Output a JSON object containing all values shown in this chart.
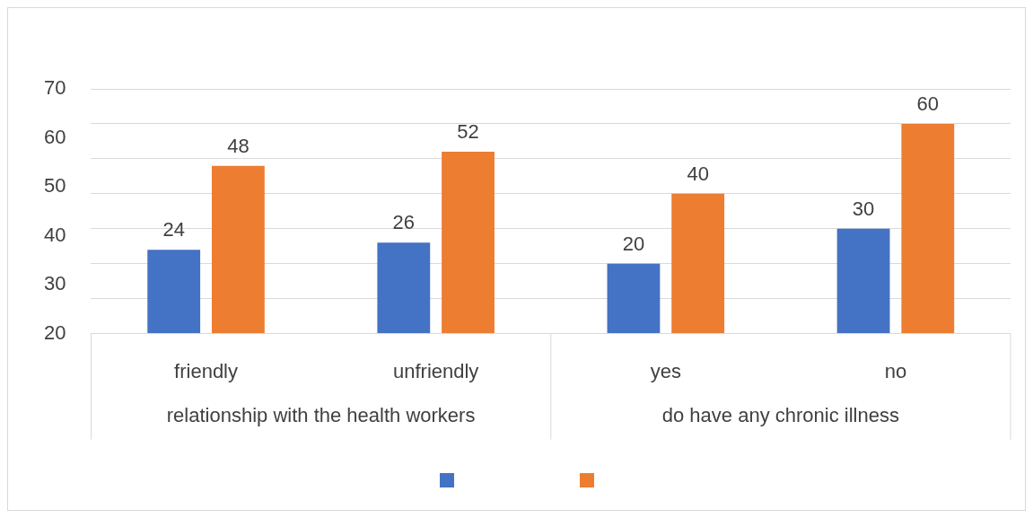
{
  "chart_data": {
    "type": "bar",
    "categories": [
      "friendly",
      "unfriendly",
      "yes",
      "no"
    ],
    "series": [
      {
        "color": "#4472c4",
        "values": [
          24,
          26,
          20,
          30
        ]
      },
      {
        "color": "#ed7d31",
        "values": [
          48,
          52,
          40,
          60
        ]
      }
    ],
    "ylim": [
      0,
      70
    ],
    "yticks": [
      {
        "value": 0,
        "label": null
      },
      {
        "value": 10,
        "label": null
      },
      {
        "value": 20,
        "label": null
      },
      {
        "value": 30,
        "label": null
      },
      {
        "value": 40,
        "label": null
      },
      {
        "value": 50,
        "label": null
      },
      {
        "value": 60,
        "label": null
      },
      {
        "value": 70,
        "label": null
      }
    ],
    "y2lim": [
      20,
      70
    ],
    "y2ticks": [
      20,
      30,
      40,
      50,
      60,
      70
    ],
    "annotations": [
      "relationship with the health workers",
      "do have any chronic illness"
    ],
    "data_labels": true,
    "grid": "y"
  }
}
